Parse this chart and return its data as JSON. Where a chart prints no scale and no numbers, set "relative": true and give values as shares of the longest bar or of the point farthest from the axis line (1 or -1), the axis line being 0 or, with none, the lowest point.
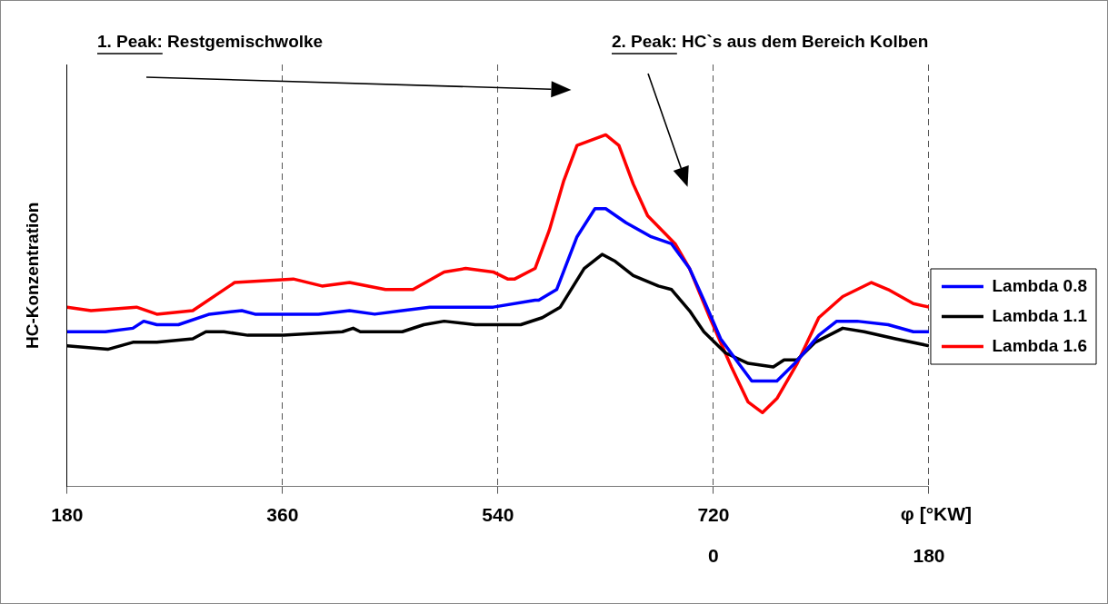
{
  "chart_data": {
    "type": "line",
    "relative": true,
    "ylabel": "HC-Konzentration",
    "xlabel": "φ [°KW]",
    "xlim": [
      180,
      900
    ],
    "xticks": [
      180,
      360,
      540,
      720,
      {
        "value": 900,
        "label": null
      }
    ],
    "x2lim": [
      -540,
      180
    ],
    "x2ticks": [
      0,
      180
    ],
    "grid": "x",
    "legend": "right",
    "marker": "none",
    "line_style": "solid",
    "annotations": [
      "1. Peak: Restgemischwolke",
      "2. Peak: HC`s aus dem Bereich Kolben"
    ],
    "series": [
      {
        "name": "Lambda 0.8",
        "color": "#0000ff",
        "x": [
          180,
          212,
          235,
          244,
          255,
          273,
          299,
          326,
          337,
          361,
          390,
          416,
          437,
          460,
          483,
          536,
          571,
          574,
          589,
          606,
          621,
          630,
          647,
          668,
          685,
          700,
          712,
          726,
          741,
          752,
          773,
          788,
          808,
          823,
          840,
          866,
          887,
          900
        ],
        "values": [
          0.44,
          0.44,
          0.45,
          0.47,
          0.46,
          0.46,
          0.49,
          0.5,
          0.49,
          0.49,
          0.49,
          0.5,
          0.49,
          0.5,
          0.51,
          0.51,
          0.53,
          0.53,
          0.56,
          0.71,
          0.79,
          0.79,
          0.75,
          0.71,
          0.69,
          0.62,
          0.53,
          0.42,
          0.35,
          0.3,
          0.3,
          0.35,
          0.43,
          0.47,
          0.47,
          0.46,
          0.44,
          0.44
        ]
      },
      {
        "name": "Lambda 1.1",
        "color": "#000000",
        "x": [
          180,
          214,
          235,
          255,
          285,
          296,
          311,
          331,
          361,
          410,
          419,
          425,
          460,
          478,
          495,
          521,
          536,
          559,
          577,
          592,
          612,
          627,
          638,
          653,
          674,
          685,
          700,
          712,
          730,
          749,
          770,
          779,
          790,
          805,
          828,
          846,
          872,
          900
        ],
        "values": [
          0.4,
          0.39,
          0.41,
          0.41,
          0.42,
          0.44,
          0.44,
          0.43,
          0.43,
          0.44,
          0.45,
          0.44,
          0.44,
          0.46,
          0.47,
          0.46,
          0.46,
          0.46,
          0.48,
          0.51,
          0.62,
          0.66,
          0.64,
          0.6,
          0.57,
          0.56,
          0.5,
          0.44,
          0.38,
          0.35,
          0.34,
          0.36,
          0.36,
          0.41,
          0.45,
          0.44,
          0.42,
          0.4
        ]
      },
      {
        "name": "Lambda 1.6",
        "color": "#ff0000",
        "x": [
          180,
          200,
          238,
          255,
          285,
          320,
          369,
          393,
          416,
          446,
          469,
          495,
          513,
          536,
          548,
          554,
          571,
          583,
          595,
          606,
          630,
          641,
          653,
          665,
          688,
          700,
          717,
          735,
          749,
          761,
          773,
          790,
          808,
          828,
          852,
          866,
          887,
          900
        ],
        "values": [
          0.51,
          0.5,
          0.51,
          0.49,
          0.5,
          0.58,
          0.59,
          0.57,
          0.58,
          0.56,
          0.56,
          0.61,
          0.62,
          0.61,
          0.59,
          0.59,
          0.62,
          0.73,
          0.87,
          0.97,
          1.0,
          0.97,
          0.86,
          0.77,
          0.69,
          0.62,
          0.48,
          0.34,
          0.24,
          0.21,
          0.25,
          0.35,
          0.48,
          0.54,
          0.58,
          0.56,
          0.52,
          0.51
        ]
      }
    ]
  }
}
